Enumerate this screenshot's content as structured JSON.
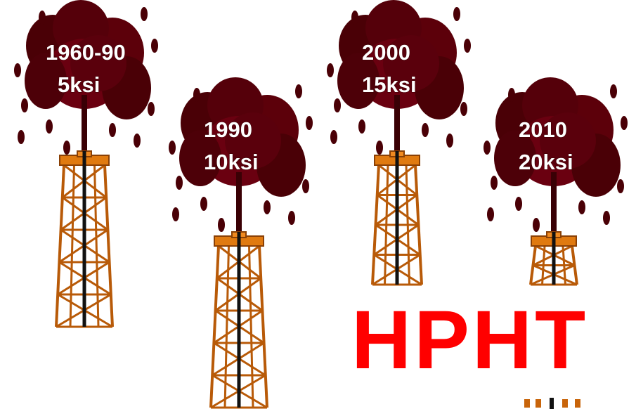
{
  "gushers": [
    {
      "year": "1960-90",
      "pressure": "5ksi"
    },
    {
      "year": "1990",
      "pressure": "10ksi"
    },
    {
      "year": "2000",
      "pressure": "15ksi"
    },
    {
      "year": "2010",
      "pressure": "20ksi"
    }
  ],
  "banner": "HPHT"
}
